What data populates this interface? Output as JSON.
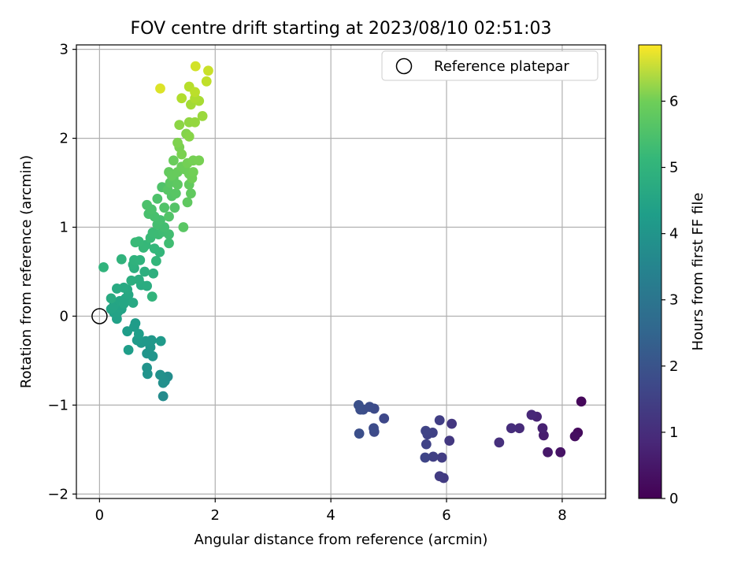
{
  "chart_data": {
    "type": "scatter",
    "title": "FOV centre drift starting at 2023/08/10 02:51:03",
    "xlabel": "Angular distance from reference (arcmin)",
    "ylabel": "Rotation from reference (arcmin)",
    "colorbar_label": "Hours from first FF file",
    "xlim": [
      -0.4,
      8.75
    ],
    "ylim": [
      -2.05,
      3.05
    ],
    "clim": [
      0,
      6.85
    ],
    "xticks": [
      0,
      2,
      4,
      6,
      8
    ],
    "yticks": [
      -2,
      -1,
      0,
      1,
      2,
      3
    ],
    "cticks": [
      0,
      1,
      2,
      3,
      4,
      5,
      6
    ],
    "grid": true,
    "colormap": "viridis",
    "legend": {
      "label": "Reference platepar",
      "location": "top-right"
    },
    "reference_point": {
      "x": 0,
      "y": 0
    },
    "series": [
      {
        "points": [
          [
            8.33,
            -0.96,
            0.12
          ],
          [
            8.27,
            -1.31,
            0.2
          ],
          [
            8.22,
            -1.35,
            0.25
          ],
          [
            7.97,
            -1.53,
            0.35
          ],
          [
            7.75,
            -1.53,
            0.45
          ],
          [
            7.68,
            -1.34,
            0.55
          ],
          [
            7.66,
            -1.26,
            0.62
          ],
          [
            7.56,
            -1.13,
            0.7
          ],
          [
            7.47,
            -1.11,
            0.76
          ],
          [
            7.26,
            -1.26,
            0.82
          ],
          [
            7.12,
            -1.26,
            0.88
          ],
          [
            6.91,
            -1.42,
            0.95
          ],
          [
            6.09,
            -1.21,
            1.1
          ],
          [
            6.05,
            -1.4,
            1.14
          ],
          [
            5.95,
            -1.82,
            1.18
          ],
          [
            5.88,
            -1.8,
            1.22
          ],
          [
            5.92,
            -1.59,
            1.25
          ],
          [
            5.88,
            -1.17,
            1.28
          ],
          [
            5.77,
            -1.58,
            1.31
          ],
          [
            5.76,
            -1.31,
            1.34
          ],
          [
            5.67,
            -1.33,
            1.36
          ],
          [
            5.65,
            -1.44,
            1.38
          ],
          [
            5.64,
            -1.29,
            1.4
          ],
          [
            5.63,
            -1.59,
            1.42
          ],
          [
            4.92,
            -1.15,
            1.5
          ],
          [
            4.75,
            -1.3,
            1.55
          ],
          [
            4.75,
            -1.04,
            1.58
          ],
          [
            4.74,
            -1.26,
            1.6
          ],
          [
            4.67,
            -1.02,
            1.62
          ],
          [
            4.56,
            -1.05,
            1.64
          ],
          [
            4.51,
            -1.05,
            1.66
          ],
          [
            4.49,
            -1.32,
            1.68
          ],
          [
            4.48,
            -1.0,
            1.7
          ],
          [
            1.1,
            -0.9,
            3.3
          ],
          [
            1.18,
            -0.68,
            3.35
          ],
          [
            1.13,
            -0.73,
            3.4
          ],
          [
            1.1,
            -0.75,
            3.42
          ],
          [
            1.05,
            -0.66,
            3.45
          ],
          [
            0.83,
            -0.65,
            3.5
          ],
          [
            0.82,
            -0.58,
            3.52
          ],
          [
            0.92,
            -0.45,
            3.55
          ],
          [
            0.82,
            -0.42,
            3.57
          ],
          [
            0.88,
            -0.35,
            3.6
          ],
          [
            0.85,
            -0.3,
            3.62
          ],
          [
            0.9,
            -0.27,
            3.64
          ],
          [
            0.8,
            -0.28,
            3.66
          ],
          [
            0.72,
            -0.3,
            3.68
          ],
          [
            1.06,
            -0.28,
            3.7
          ],
          [
            0.65,
            -0.27,
            3.72
          ],
          [
            0.6,
            -0.12,
            3.74
          ],
          [
            0.62,
            -0.08,
            3.76
          ],
          [
            0.48,
            -0.17,
            3.78
          ],
          [
            0.5,
            -0.38,
            3.8
          ],
          [
            0.68,
            -0.2,
            3.82
          ],
          [
            0.3,
            -0.03,
            3.9
          ],
          [
            0.25,
            0.04,
            3.92
          ],
          [
            0.32,
            0.05,
            3.94
          ],
          [
            0.38,
            0.08,
            3.96
          ],
          [
            0.2,
            0.08,
            3.98
          ],
          [
            0.25,
            0.12,
            4.0
          ],
          [
            0.35,
            0.17,
            4.02
          ],
          [
            0.42,
            0.14,
            4.04
          ],
          [
            0.45,
            0.2,
            4.06
          ],
          [
            0.5,
            0.24,
            4.08
          ],
          [
            0.58,
            0.15,
            4.1
          ],
          [
            0.48,
            0.3,
            4.12
          ],
          [
            0.42,
            0.32,
            4.14
          ],
          [
            0.3,
            0.31,
            4.16
          ],
          [
            0.2,
            0.2,
            4.18
          ],
          [
            0.72,
            0.35,
            4.2
          ],
          [
            0.82,
            0.34,
            4.22
          ],
          [
            0.68,
            0.41,
            4.24
          ],
          [
            0.55,
            0.4,
            4.26
          ],
          [
            0.78,
            0.5,
            4.28
          ],
          [
            0.6,
            0.54,
            4.3
          ],
          [
            0.93,
            0.48,
            4.32
          ],
          [
            0.58,
            0.58,
            4.34
          ],
          [
            0.62,
            0.62,
            4.36
          ],
          [
            0.6,
            0.63,
            4.38
          ],
          [
            0.7,
            0.63,
            4.4
          ],
          [
            0.38,
            0.64,
            4.42
          ],
          [
            0.07,
            0.55,
            4.44
          ],
          [
            0.91,
            0.22,
            4.46
          ],
          [
            0.98,
            0.62,
            4.5
          ],
          [
            1.04,
            0.72,
            4.52
          ],
          [
            0.95,
            0.76,
            4.54
          ],
          [
            0.8,
            0.8,
            4.56
          ],
          [
            0.76,
            0.77,
            4.58
          ],
          [
            0.68,
            0.84,
            4.6
          ],
          [
            0.62,
            0.83,
            4.62
          ],
          [
            0.88,
            0.88,
            4.64
          ],
          [
            0.92,
            0.94,
            4.66
          ],
          [
            1.02,
            0.92,
            4.68
          ],
          [
            1.1,
            0.95,
            4.7
          ],
          [
            1.2,
            0.82,
            4.72
          ],
          [
            1.2,
            0.92,
            4.74
          ],
          [
            1.12,
            1.0,
            4.76
          ],
          [
            1.0,
            1.03,
            4.78
          ],
          [
            1.05,
            1.08,
            4.8
          ],
          [
            0.95,
            1.12,
            4.82
          ],
          [
            0.85,
            1.15,
            4.84
          ],
          [
            0.9,
            1.2,
            4.86
          ],
          [
            0.82,
            1.25,
            4.88
          ],
          [
            1.0,
            1.32,
            4.9
          ],
          [
            1.08,
            1.45,
            4.92
          ],
          [
            1.12,
            1.22,
            4.94
          ],
          [
            1.2,
            1.12,
            4.96
          ],
          [
            1.3,
            1.22,
            4.98
          ],
          [
            1.25,
            1.35,
            5.0
          ],
          [
            1.18,
            1.42,
            5.02
          ],
          [
            1.32,
            1.38,
            5.04
          ],
          [
            1.45,
            1.0,
            5.06
          ],
          [
            1.22,
            1.5,
            5.08
          ],
          [
            1.28,
            1.55,
            5.1
          ],
          [
            1.35,
            1.48,
            5.12
          ],
          [
            1.52,
            1.28,
            5.14
          ],
          [
            1.58,
            1.38,
            5.16
          ],
          [
            1.55,
            1.48,
            5.18
          ],
          [
            1.2,
            1.62,
            5.2
          ],
          [
            1.25,
            1.58,
            5.22
          ],
          [
            1.35,
            1.62,
            5.24
          ],
          [
            1.28,
            1.75,
            5.26
          ],
          [
            1.42,
            1.68,
            5.28
          ],
          [
            1.48,
            1.65,
            5.3
          ],
          [
            1.55,
            1.6,
            5.32
          ],
          [
            1.6,
            1.55,
            5.34
          ],
          [
            1.62,
            1.62,
            5.36
          ],
          [
            1.52,
            1.72,
            5.38
          ],
          [
            1.62,
            1.75,
            5.4
          ],
          [
            1.72,
            1.75,
            5.42
          ],
          [
            1.38,
            1.9,
            5.44
          ],
          [
            1.42,
            1.82,
            5.46
          ],
          [
            1.35,
            1.95,
            5.5
          ],
          [
            1.5,
            2.05,
            5.55
          ],
          [
            1.55,
            2.02,
            5.6
          ],
          [
            1.38,
            2.15,
            5.65
          ],
          [
            1.55,
            2.18,
            5.7
          ],
          [
            1.65,
            2.18,
            5.75
          ],
          [
            1.78,
            2.25,
            5.8
          ],
          [
            1.58,
            2.38,
            5.9
          ],
          [
            1.72,
            2.42,
            5.95
          ],
          [
            1.65,
            2.45,
            6.0
          ],
          [
            1.42,
            2.45,
            6.05
          ],
          [
            1.55,
            2.58,
            6.1
          ],
          [
            1.65,
            2.52,
            6.15
          ],
          [
            1.85,
            2.64,
            6.2
          ],
          [
            1.88,
            2.76,
            6.3
          ],
          [
            1.66,
            2.81,
            6.4
          ],
          [
            1.05,
            2.56,
            6.5
          ]
        ]
      }
    ]
  }
}
